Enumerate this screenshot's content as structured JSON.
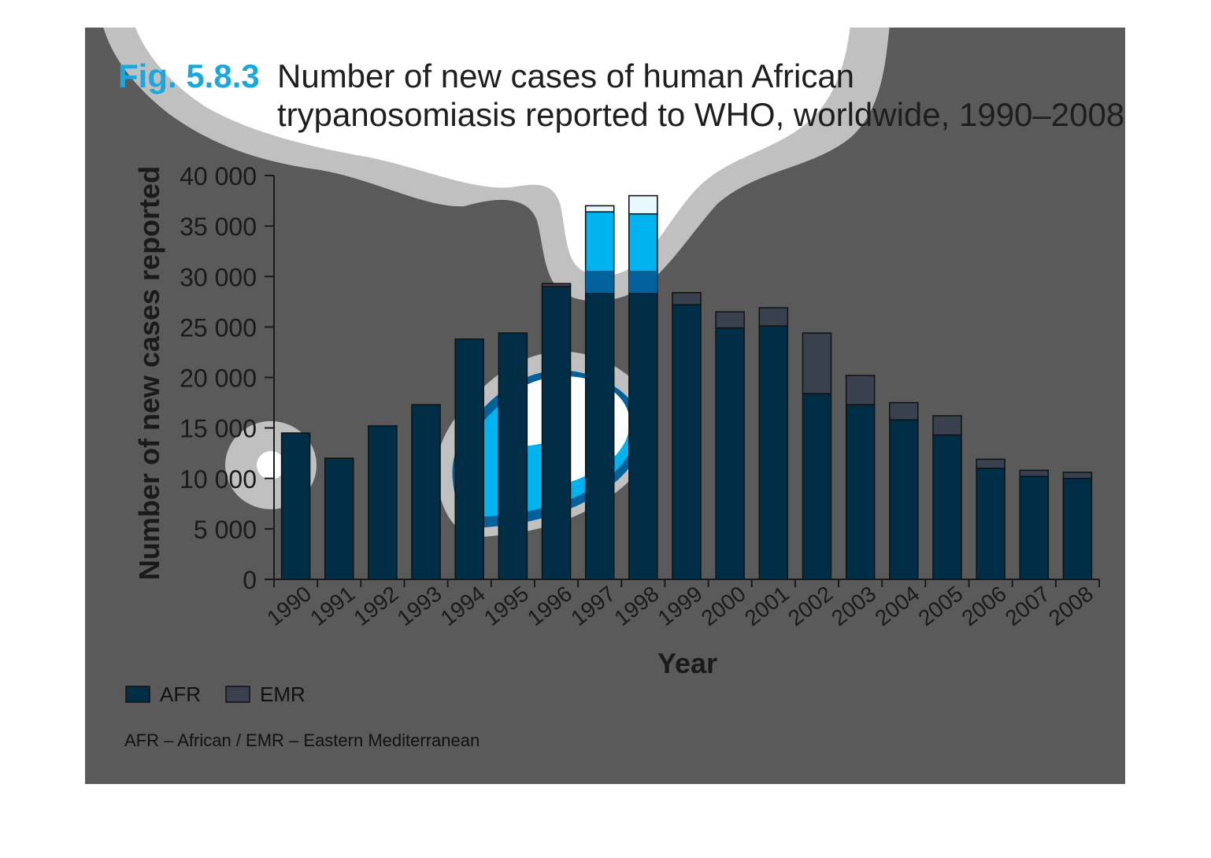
{
  "figure": {
    "label": "Fig. 5.8.3",
    "title_line1": "Number of new cases of human African",
    "title_line2": "trypanosomiasis reported to WHO, worldwide, 1990–2008"
  },
  "colors": {
    "panel_bg": "#5a5a5a",
    "afr": "#002e47",
    "emr": "#39414f",
    "highlight_afr": "#00b3ef",
    "highlight_emr": "#e8f8fd",
    "mid_ring": "#02609a",
    "glow_gray": "#c0c0c0",
    "accent": "#1aa7df"
  },
  "chart_data": {
    "type": "bar",
    "stacked": true,
    "categories": [
      "1990",
      "1991",
      "1992",
      "1993",
      "1994",
      "1995",
      "1996",
      "1997",
      "1998",
      "1999",
      "2000",
      "2001",
      "2002",
      "2003",
      "2004",
      "2005",
      "2006",
      "2007",
      "2008"
    ],
    "series": [
      {
        "name": "AFR",
        "values": [
          14500,
          12000,
          15200,
          17300,
          23800,
          24400,
          29000,
          36400,
          36200,
          27200,
          24900,
          25100,
          18400,
          17300,
          15800,
          14300,
          11000,
          10200,
          10000
        ]
      },
      {
        "name": "EMR",
        "values": [
          0,
          0,
          0,
          0,
          0,
          0,
          300,
          600,
          1800,
          1200,
          1600,
          1800,
          6000,
          2900,
          1700,
          1900,
          900,
          600,
          600
        ]
      }
    ],
    "xlabel": "Year",
    "ylabel": "Number of new cases reported",
    "ylim": [
      0,
      40000
    ],
    "yticks": [
      0,
      5000,
      10000,
      15000,
      20000,
      25000,
      30000,
      35000,
      40000
    ],
    "ytick_labels": [
      "0",
      "5 000",
      "10 000",
      "15 000",
      "20 000",
      "25 000",
      "30 000",
      "35 000",
      "40 000"
    ],
    "grid": false,
    "legend_position": "bottom-left"
  },
  "legend": [
    {
      "label": "AFR"
    },
    {
      "label": "EMR"
    }
  ],
  "footnote": "AFR – African / EMR – Eastern Mediterranean"
}
